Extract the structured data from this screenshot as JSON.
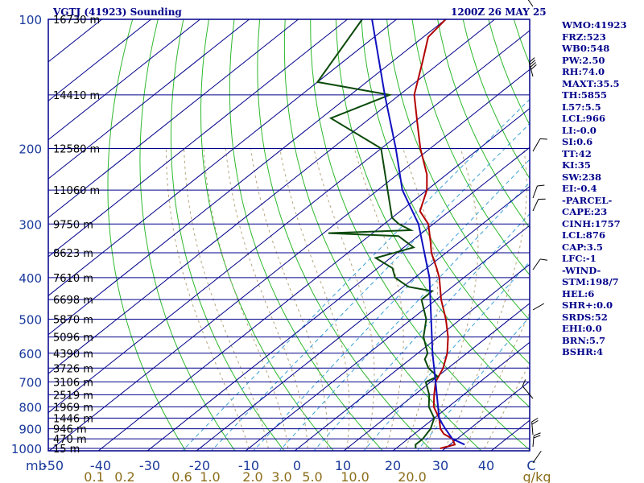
{
  "header": {
    "title": "VGTJ (41923) Sounding",
    "datetime": "1200Z 26 MAY 25"
  },
  "indices": [
    "WMO:41923",
    "FRZ:523",
    "WB0:548",
    "PW:2.50",
    "RH:74.0",
    "MAXT:35.5",
    "TH:5855",
    "L57:5.5",
    "LCL:966",
    "LI:-0.0",
    "SI:0.6",
    "TT:42",
    "KI:35",
    "SW:238",
    "EI:-0.4",
    "-PARCEL-",
    "CAPE:23",
    "CINH:1757",
    "LCL:876",
    "CAP:3.5",
    "LFC:-1",
    "-WIND-",
    "STM:198/7",
    "HEL:6",
    "SHR+:0.0",
    "SRDS:52",
    "EHI:0.0",
    "BRN:5.7",
    "BSHR:4"
  ],
  "colors": {
    "frame": "#00008b",
    "isobar": "#00008b",
    "isotherm": "#00008b",
    "dry_adiabat": "#2db82d",
    "moist_adiabat": "#b3a47a",
    "mixing_ratio": "#3aa0d8",
    "temperature": "#b30000",
    "dewpoint": "#0b4a0b",
    "parcel": "#1010c0",
    "wind_barb": "#000000",
    "mixing_label": "#8b6d1a",
    "pressure_label": "#1a3a9c",
    "height_label": "#000000"
  },
  "chart_data": {
    "type": "skew-t log-p sounding",
    "title": "VGTJ (41923) Sounding",
    "pressure_unit": "mb",
    "temperature_unit": "°C",
    "mixing_ratio_unit": "g/kg",
    "pressure_range": [
      1000,
      100
    ],
    "pressure_ticks": [
      "100",
      "200",
      "300",
      "400",
      "500",
      "600",
      "700",
      "800",
      "900",
      "1000"
    ],
    "temperature_ticks": [
      "-50",
      "-40",
      "-30",
      "-20",
      "-10",
      "0",
      "10",
      "20",
      "30",
      "40",
      "C"
    ],
    "mixing_ratio_ticks": [
      "0.1",
      "0.2",
      "0.6",
      "1.0",
      "2.0",
      "3.0",
      "5.0",
      "10.0",
      "20.0",
      "g/kg"
    ],
    "height_labels": [
      {
        "p": 100,
        "label": "16730 m"
      },
      {
        "p": 150,
        "label": "14410 m"
      },
      {
        "p": 200,
        "label": "12580 m"
      },
      {
        "p": 250,
        "label": "11060 m"
      },
      {
        "p": 300,
        "label": "9750 m"
      },
      {
        "p": 350,
        "label": "8623 m"
      },
      {
        "p": 400,
        "label": "7610 m"
      },
      {
        "p": 450,
        "label": "6698 m"
      },
      {
        "p": 500,
        "label": "5870 m"
      },
      {
        "p": 550,
        "label": "5096 m"
      },
      {
        "p": 600,
        "label": "4390 m"
      },
      {
        "p": 650,
        "label": "3726 m"
      },
      {
        "p": 700,
        "label": "3106 m"
      },
      {
        "p": 750,
        "label": "2519 m"
      },
      {
        "p": 800,
        "label": "1969 m"
      },
      {
        "p": 850,
        "label": "1446 m"
      },
      {
        "p": 900,
        "label": "946 m"
      },
      {
        "p": 950,
        "label": "470 m"
      },
      {
        "p": 1000,
        "label": "15 m"
      }
    ],
    "temperature_profile": [
      {
        "p": 1000,
        "t": 29
      },
      {
        "p": 980,
        "t": 31
      },
      {
        "p": 950,
        "t": 29
      },
      {
        "p": 925,
        "t": 26
      },
      {
        "p": 900,
        "t": 24
      },
      {
        "p": 850,
        "t": 21
      },
      {
        "p": 800,
        "t": 17
      },
      {
        "p": 750,
        "t": 14
      },
      {
        "p": 700,
        "t": 11
      },
      {
        "p": 650,
        "t": 9
      },
      {
        "p": 600,
        "t": 6
      },
      {
        "p": 550,
        "t": 2
      },
      {
        "p": 500,
        "t": -3
      },
      {
        "p": 450,
        "t": -9
      },
      {
        "p": 400,
        "t": -15
      },
      {
        "p": 380,
        "t": -18
      },
      {
        "p": 350,
        "t": -23
      },
      {
        "p": 330,
        "t": -26
      },
      {
        "p": 300,
        "t": -31
      },
      {
        "p": 280,
        "t": -36
      },
      {
        "p": 250,
        "t": -40
      },
      {
        "p": 230,
        "t": -44
      },
      {
        "p": 200,
        "t": -52
      },
      {
        "p": 175,
        "t": -59
      },
      {
        "p": 150,
        "t": -67
      },
      {
        "p": 125,
        "t": -74
      },
      {
        "p": 110,
        "t": -79
      },
      {
        "p": 100,
        "t": -80
      }
    ],
    "dewpoint_profile": [
      {
        "p": 1000,
        "td": 24
      },
      {
        "p": 980,
        "td": 23
      },
      {
        "p": 950,
        "td": 23
      },
      {
        "p": 900,
        "td": 22
      },
      {
        "p": 850,
        "td": 20
      },
      {
        "p": 800,
        "td": 16
      },
      {
        "p": 750,
        "td": 13
      },
      {
        "p": 700,
        "td": 9
      },
      {
        "p": 680,
        "td": 10
      },
      {
        "p": 650,
        "td": 6
      },
      {
        "p": 620,
        "td": 3
      },
      {
        "p": 600,
        "td": 2
      },
      {
        "p": 550,
        "td": -3
      },
      {
        "p": 500,
        "td": -7
      },
      {
        "p": 450,
        "td": -13
      },
      {
        "p": 430,
        "td": -13
      },
      {
        "p": 420,
        "td": -19
      },
      {
        "p": 400,
        "td": -24
      },
      {
        "p": 380,
        "td": -27
      },
      {
        "p": 360,
        "td": -33
      },
      {
        "p": 340,
        "td": -28
      },
      {
        "p": 320,
        "td": -34
      },
      {
        "p": 315,
        "td": -49
      },
      {
        "p": 310,
        "td": -33
      },
      {
        "p": 300,
        "td": -37
      },
      {
        "p": 290,
        "td": -40
      },
      {
        "p": 250,
        "td": -48
      },
      {
        "p": 200,
        "td": -60
      },
      {
        "p": 170,
        "td": -78
      },
      {
        "p": 150,
        "td": -72
      },
      {
        "p": 140,
        "td": -90
      },
      {
        "p": 100,
        "td": -97
      }
    ],
    "parcel_profile": [
      {
        "p": 980,
        "t": 33
      },
      {
        "p": 950,
        "t": 29
      },
      {
        "p": 900,
        "t": 25
      },
      {
        "p": 875,
        "t": 23
      },
      {
        "p": 850,
        "t": 21
      },
      {
        "p": 700,
        "t": 11
      },
      {
        "p": 600,
        "t": 3
      },
      {
        "p": 500,
        "t": -6
      },
      {
        "p": 400,
        "t": -17
      },
      {
        "p": 300,
        "t": -33
      },
      {
        "p": 250,
        "t": -45
      },
      {
        "p": 200,
        "t": -57
      },
      {
        "p": 150,
        "t": -73
      },
      {
        "p": 100,
        "t": -95
      }
    ],
    "wind_barbs_pressure_levels": [
      100,
      150,
      200,
      250,
      300,
      400,
      500,
      700,
      850,
      925,
      1000
    ]
  }
}
